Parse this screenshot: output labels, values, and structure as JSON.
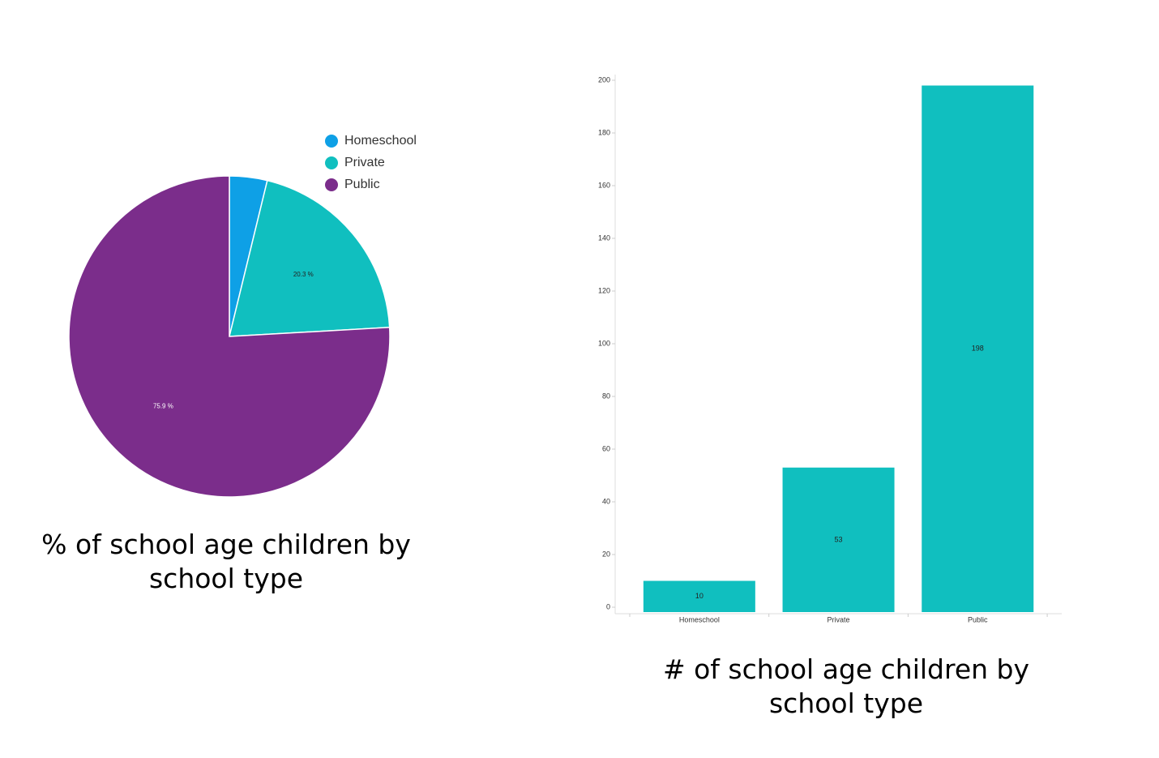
{
  "chart_data": [
    {
      "type": "pie",
      "title": "% of school age children by school type",
      "categories": [
        "Homeschool",
        "Private",
        "Public"
      ],
      "values": [
        3.8,
        20.3,
        75.9
      ],
      "value_labels": [
        null,
        "20.3 %",
        "75.9 %"
      ],
      "colors": [
        "#0ea0e6",
        "#10bfbf",
        "#7b2d8b"
      ]
    },
    {
      "type": "bar",
      "title": "# of school age children by school type",
      "categories": [
        "Homeschool",
        "Private",
        "Public"
      ],
      "values": [
        10,
        53,
        198
      ],
      "color": "#10bfbf",
      "ylim": [
        0,
        200
      ],
      "yticks": [
        0,
        20,
        40,
        60,
        80,
        100,
        120,
        140,
        160,
        180,
        200
      ]
    }
  ]
}
